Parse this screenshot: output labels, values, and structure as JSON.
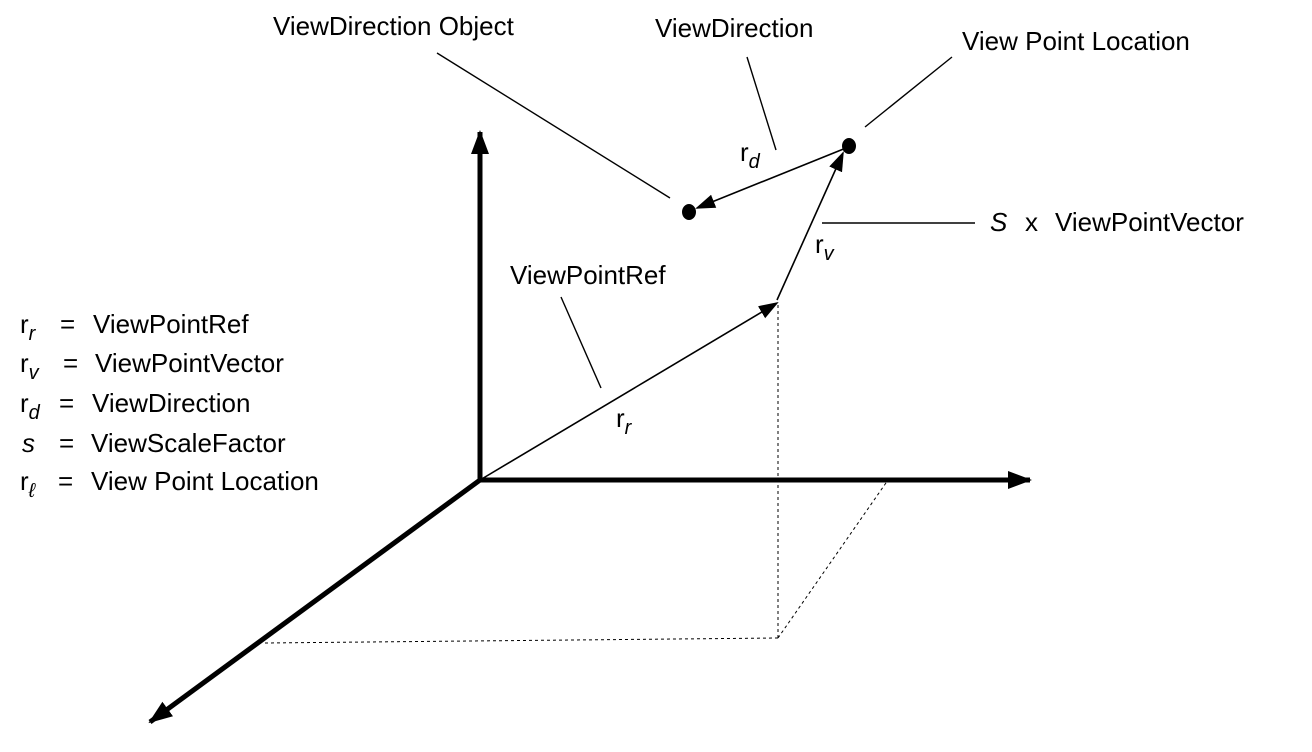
{
  "labels": {
    "view_direction_object": "ViewDirection Object",
    "view_direction": "ViewDirection",
    "view_point_location": "View Point Location",
    "s_symbol": "S",
    "times": "x",
    "view_point_vector": "ViewPointVector",
    "view_point_ref": "ViewPointRef"
  },
  "vectors": {
    "rd": {
      "base": "r",
      "sub": "d"
    },
    "rv": {
      "base": "r",
      "sub": "v"
    },
    "rr": {
      "base": "r",
      "sub": "r"
    }
  },
  "legend": [
    {
      "base": "r",
      "sub": "r",
      "eq": "=",
      "text": "ViewPointRef"
    },
    {
      "base": "r",
      "sub": "v",
      "eq": "=",
      "text": "ViewPointVector"
    },
    {
      "base": "r",
      "sub": "d",
      "eq": "=",
      "text": "ViewDirection"
    },
    {
      "base": "s",
      "sub": "",
      "eq": "=",
      "text": "ViewScaleFactor"
    },
    {
      "base": "r",
      "sub": "ℓ",
      "eq": "=",
      "text": "View Point Location"
    }
  ],
  "colors": {
    "ink": "#000000",
    "background": "#ffffff"
  }
}
